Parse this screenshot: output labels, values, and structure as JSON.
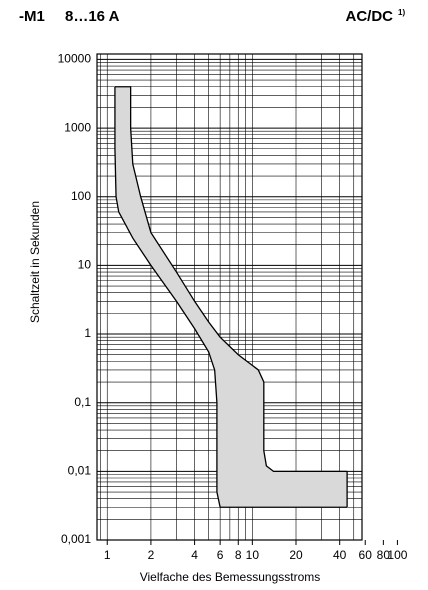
{
  "chart_data": {
    "type": "band",
    "title_left": "-M1",
    "title_mid": "8…16 A",
    "title_right": "AC/DC",
    "footnote": "1)",
    "x_label": "Vielfache des Bemessungsstroms",
    "y_label": "Schaltzeit in Sekunden",
    "log_x": true,
    "log_y": true,
    "grid": true,
    "fill_color": "#d9d9d9",
    "line_color": "#000000",
    "xlim": [
      0.85,
      57
    ],
    "ylim": [
      0.001,
      12000
    ],
    "xticks": [
      1,
      2,
      4,
      6,
      8,
      10,
      20,
      40,
      60,
      80,
      100
    ],
    "yticks": [
      10000,
      1000,
      100,
      10,
      1,
      {
        "value": 0.1,
        "label": "0,1"
      },
      {
        "value": 0.01,
        "label": "0,01"
      },
      {
        "value": 0.001,
        "label": "0,001"
      }
    ],
    "series": [
      {
        "x": [
          1.13,
          1.45,
          1.45,
          1.5,
          1.7,
          2,
          3,
          4,
          5,
          6,
          8,
          10,
          11,
          12,
          12,
          12.5,
          14,
          45
        ],
        "values": [
          4000,
          4000,
          1000,
          300,
          100,
          30,
          8,
          3,
          1.5,
          0.9,
          0.5,
          0.35,
          0.3,
          0.2,
          0.02,
          0.012,
          0.01,
          0.01
        ]
      },
      {
        "x": [
          1.13,
          1.13,
          1.15,
          1.2,
          1.5,
          2,
          3,
          4,
          5,
          5.5,
          5.7,
          5.7,
          6,
          45
        ],
        "values": [
          4000,
          500,
          100,
          60,
          25,
          10,
          3,
          1.2,
          0.55,
          0.3,
          0.1,
          0.005,
          0.003,
          0.003
        ]
      }
    ]
  }
}
